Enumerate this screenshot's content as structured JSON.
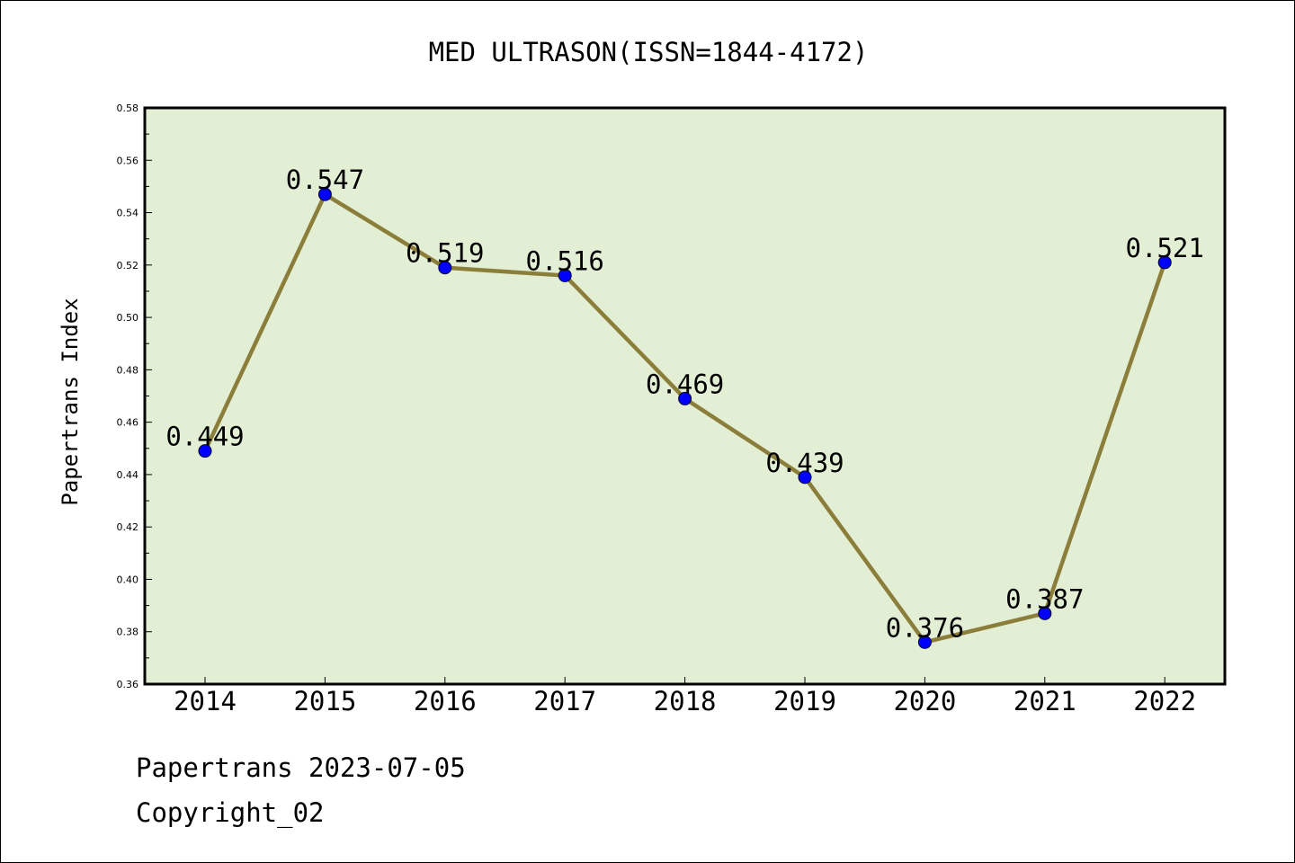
{
  "chart_data": {
    "type": "line",
    "title": "MED ULTRASON(ISSN=1844-4172)",
    "xlabel": "",
    "ylabel": "Papertrans Index",
    "categories": [
      "2014",
      "2015",
      "2016",
      "2017",
      "2018",
      "2019",
      "2020",
      "2021",
      "2022"
    ],
    "series": [
      {
        "values": [
          0.449,
          0.547,
          0.519,
          0.516,
          0.469,
          0.439,
          0.376,
          0.387,
          0.521
        ],
        "data_labels": [
          "0.449",
          "0.547",
          "0.519",
          "0.516",
          "0.469",
          "0.439",
          "0.376",
          "0.387",
          "0.521"
        ],
        "line_color": "#8b7d3a",
        "marker_color": "#0000ff"
      }
    ],
    "ylim": [
      0.36,
      0.58
    ],
    "yticks": [
      "0.36",
      "0.38",
      "0.40",
      "0.42",
      "0.44",
      "0.46",
      "0.48",
      "0.50",
      "0.52",
      "0.54",
      "0.56",
      "0.58"
    ],
    "grid": false,
    "plot_background": "#e2efd4"
  },
  "footer": {
    "date_line": "Papertrans 2023-07-05",
    "copyright": "Copyright_02"
  }
}
